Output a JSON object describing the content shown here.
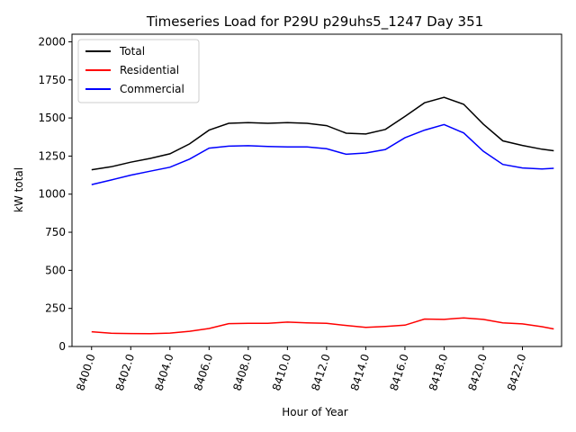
{
  "chart_data": {
    "type": "line",
    "title": "Timeseries Load for P29U p29uhs5_1247  Day 351",
    "xlabel": "Hour of Year",
    "ylabel": "kW total",
    "xlim": [
      8399,
      8424
    ],
    "ylim": [
      0,
      2050
    ],
    "xticks": [
      8400,
      8402,
      8404,
      8406,
      8408,
      8410,
      8412,
      8414,
      8416,
      8418,
      8420,
      8422
    ],
    "xtick_labels": [
      "8400.0",
      "8402.0",
      "8404.0",
      "8406.0",
      "8408.0",
      "8410.0",
      "8412.0",
      "8414.0",
      "8416.0",
      "8418.0",
      "8420.0",
      "8422.0"
    ],
    "yticks": [
      0,
      250,
      500,
      750,
      1000,
      1250,
      1500,
      1750,
      2000
    ],
    "ytick_labels": [
      "0",
      "250",
      "500",
      "750",
      "1000",
      "1250",
      "1500",
      "1750",
      "2000"
    ],
    "grid": false,
    "legend_position": "top-left",
    "x": [
      8400.0,
      8401.0,
      8402.0,
      8403.0,
      8404.0,
      8405.0,
      8406.0,
      8407.0,
      8408.0,
      8409.0,
      8410.0,
      8411.0,
      8412.0,
      8413.0,
      8414.0,
      8415.0,
      8416.0,
      8417.0,
      8418.0,
      8419.0,
      8420.0,
      8421.0,
      8422.0,
      8423.0,
      8423.6
    ],
    "series": [
      {
        "name": "Total",
        "color": "#000000",
        "values": [
          1160,
          1180,
          1210,
          1235,
          1265,
          1330,
          1420,
          1465,
          1470,
          1465,
          1470,
          1465,
          1450,
          1400,
          1395,
          1425,
          1510,
          1600,
          1635,
          1590,
          1460,
          1350,
          1320,
          1295,
          1285
        ]
      },
      {
        "name": "Residential",
        "color": "#ff0000",
        "values": [
          97,
          87,
          85,
          84,
          88,
          100,
          118,
          150,
          152,
          152,
          160,
          155,
          152,
          138,
          125,
          132,
          140,
          180,
          178,
          188,
          178,
          155,
          148,
          130,
          115
        ]
      },
      {
        "name": "Commercial",
        "color": "#0000ff",
        "values": [
          1063,
          1093,
          1125,
          1151,
          1177,
          1230,
          1302,
          1315,
          1318,
          1313,
          1310,
          1310,
          1298,
          1262,
          1270,
          1293,
          1370,
          1420,
          1457,
          1402,
          1282,
          1195,
          1172,
          1165,
          1170
        ]
      }
    ]
  }
}
